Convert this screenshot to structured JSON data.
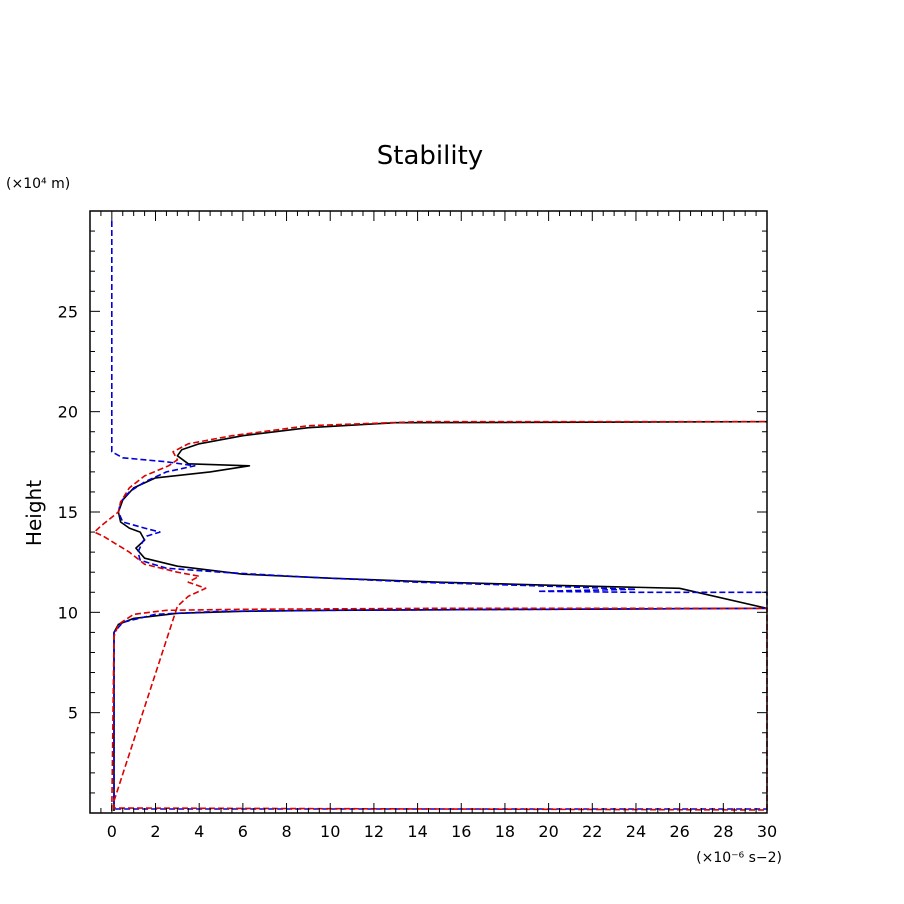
{
  "chart_data": {
    "type": "line",
    "title": "Stability",
    "ylabel": "Height",
    "y_unit_label": "(×10⁴ m)",
    "x_unit_label": "(×10⁻⁶ s−2)",
    "xlim": [
      -1,
      30
    ],
    "ylim": [
      0,
      30
    ],
    "x_ticks": [
      0,
      2,
      4,
      6,
      8,
      10,
      12,
      14,
      16,
      18,
      20,
      22,
      24,
      26,
      28,
      30
    ],
    "y_ticks": [
      5,
      10,
      15,
      20,
      25
    ],
    "grid": false,
    "legend": "none",
    "series": [
      {
        "color": "#000000",
        "dash": "solid",
        "points": [
          [
            0.1,
            0.1
          ],
          [
            0.1,
            9.0
          ],
          [
            0.3,
            9.4
          ],
          [
            1.0,
            9.7
          ],
          [
            3.0,
            9.95
          ],
          [
            6.0,
            10.05
          ],
          [
            10.0,
            10.1
          ],
          [
            20.0,
            10.15
          ],
          [
            30.0,
            10.2
          ],
          [
            26.0,
            11.2
          ],
          [
            20.0,
            11.35
          ],
          [
            15.0,
            11.5
          ],
          [
            10.0,
            11.7
          ],
          [
            6.0,
            11.9
          ],
          [
            3.0,
            12.3
          ],
          [
            1.5,
            12.7
          ],
          [
            1.1,
            13.2
          ],
          [
            1.5,
            13.6
          ],
          [
            1.3,
            14.0
          ],
          [
            0.8,
            14.2
          ],
          [
            0.4,
            14.5
          ],
          [
            0.3,
            15.0
          ],
          [
            0.5,
            15.6
          ],
          [
            1.0,
            16.2
          ],
          [
            2.0,
            16.7
          ],
          [
            4.5,
            17.0
          ],
          [
            6.3,
            17.3
          ],
          [
            3.5,
            17.4
          ],
          [
            3.0,
            17.8
          ],
          [
            3.2,
            18.1
          ],
          [
            4.0,
            18.4
          ],
          [
            6.0,
            18.8
          ],
          [
            9.0,
            19.2
          ],
          [
            13.0,
            19.45
          ],
          [
            30.0,
            19.5
          ]
        ]
      },
      {
        "color": "#0000dd",
        "dash": "dashed",
        "points": [
          [
            0.0,
            29.5
          ],
          [
            0.0,
            18.0
          ],
          [
            0.5,
            17.7
          ],
          [
            2.5,
            17.5
          ],
          [
            3.8,
            17.3
          ],
          [
            2.5,
            17.0
          ],
          [
            1.5,
            16.5
          ],
          [
            0.8,
            16.0
          ],
          [
            0.4,
            15.5
          ],
          [
            0.3,
            15.0
          ],
          [
            0.5,
            14.5
          ],
          [
            1.5,
            14.2
          ],
          [
            2.2,
            14.0
          ],
          [
            1.6,
            13.8
          ],
          [
            1.4,
            13.5
          ],
          [
            1.2,
            13.0
          ],
          [
            1.3,
            12.6
          ],
          [
            2.5,
            12.2
          ],
          [
            5.0,
            12.0
          ],
          [
            9.0,
            11.75
          ],
          [
            14.0,
            11.5
          ],
          [
            20.0,
            11.3
          ],
          [
            24.0,
            11.15
          ],
          [
            19.5,
            11.05
          ],
          [
            24.0,
            11.0
          ],
          [
            30.0,
            11.0
          ],
          [
            30.0,
            10.2
          ],
          [
            20.0,
            10.15
          ],
          [
            10.0,
            10.1
          ],
          [
            5.0,
            10.05
          ],
          [
            2.0,
            9.9
          ],
          [
            0.5,
            9.5
          ],
          [
            0.1,
            9.0
          ],
          [
            0.1,
            0.2
          ],
          [
            30.0,
            0.2
          ]
        ]
      },
      {
        "color": "#dd0000",
        "dash": "dashed",
        "points": [
          [
            0.0,
            0.1
          ],
          [
            0.1,
            8.8
          ],
          [
            0.3,
            9.4
          ],
          [
            1.0,
            9.9
          ],
          [
            2.5,
            10.1
          ],
          [
            6.0,
            10.15
          ],
          [
            15.0,
            10.2
          ],
          [
            30.0,
            10.2
          ],
          [
            30.0,
            0.15
          ],
          [
            0.1,
            0.25
          ],
          [
            0.1,
            0.6
          ],
          [
            3.0,
            10.3
          ],
          [
            3.5,
            10.8
          ],
          [
            4.3,
            11.2
          ],
          [
            3.5,
            11.5
          ],
          [
            4.0,
            11.8
          ],
          [
            3.0,
            12.0
          ],
          [
            1.5,
            12.4
          ],
          [
            0.8,
            13.0
          ],
          [
            -0.4,
            13.8
          ],
          [
            -0.8,
            14.0
          ],
          [
            -0.5,
            14.3
          ],
          [
            0.3,
            15.0
          ],
          [
            0.4,
            15.5
          ],
          [
            0.8,
            16.2
          ],
          [
            1.5,
            16.8
          ],
          [
            2.6,
            17.3
          ],
          [
            3.0,
            17.6
          ],
          [
            2.8,
            18.0
          ],
          [
            3.5,
            18.4
          ],
          [
            5.5,
            18.8
          ],
          [
            9.0,
            19.3
          ],
          [
            14.0,
            19.5
          ],
          [
            30.0,
            19.5
          ]
        ]
      }
    ]
  }
}
